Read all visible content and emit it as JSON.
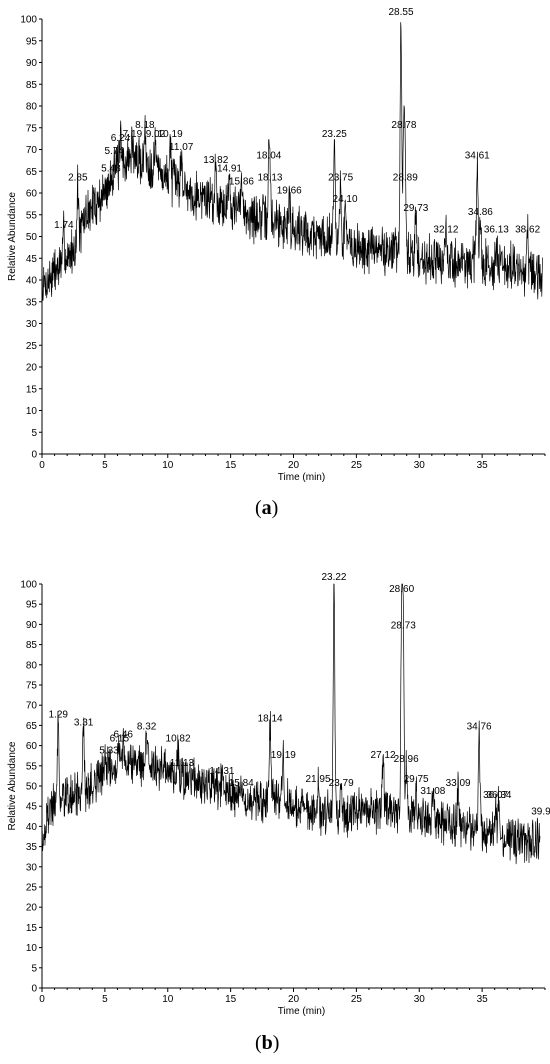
{
  "chart_data": [
    {
      "type": "line",
      "caption_open": "(",
      "caption_letter": "a",
      "caption_close": ")",
      "xlabel": "Time (min)",
      "ylabel": "Relative Abundance",
      "xlim": [
        0,
        40
      ],
      "ylim": [
        0,
        100
      ],
      "xticks": [
        0,
        5,
        10,
        15,
        20,
        25,
        30,
        35
      ],
      "yticks": [
        0,
        5,
        10,
        15,
        20,
        25,
        30,
        35,
        40,
        45,
        50,
        55,
        60,
        65,
        70,
        75,
        80,
        85,
        90,
        95,
        100
      ],
      "line_color": "#000000",
      "baseline_points": [
        [
          0,
          38
        ],
        [
          1,
          42
        ],
        [
          2,
          45
        ],
        [
          2.8,
          48
        ],
        [
          3.5,
          55
        ],
        [
          5,
          60
        ],
        [
          6,
          66
        ],
        [
          7,
          68
        ],
        [
          8,
          67
        ],
        [
          9,
          66
        ],
        [
          10,
          63
        ],
        [
          11,
          62
        ],
        [
          12,
          60
        ],
        [
          13,
          59
        ],
        [
          14,
          58
        ],
        [
          15,
          57
        ],
        [
          16,
          56
        ],
        [
          17,
          54
        ],
        [
          18,
          54
        ],
        [
          19,
          53
        ],
        [
          20,
          52
        ],
        [
          21,
          51
        ],
        [
          22,
          50
        ],
        [
          23,
          50
        ],
        [
          24,
          48
        ],
        [
          25,
          47
        ],
        [
          26,
          47
        ],
        [
          27,
          47
        ],
        [
          28,
          47
        ],
        [
          29,
          46
        ],
        [
          30,
          45
        ],
        [
          31,
          45
        ],
        [
          32,
          44
        ],
        [
          33,
          44
        ],
        [
          34,
          44
        ],
        [
          35,
          44
        ],
        [
          36,
          43
        ],
        [
          37,
          43
        ],
        [
          38,
          42
        ],
        [
          39,
          41
        ],
        [
          39.8,
          40
        ]
      ],
      "peaks": [
        {
          "label": "1.74",
          "x": 1.74,
          "y": 51
        },
        {
          "label": "2.85",
          "x": 2.85,
          "y": 62
        },
        {
          "label": "5.48",
          "x": 5.48,
          "y": 64
        },
        {
          "label": "5.74",
          "x": 5.74,
          "y": 68
        },
        {
          "label": "6.24",
          "x": 6.24,
          "y": 71
        },
        {
          "label": "7.19",
          "x": 7.19,
          "y": 72
        },
        {
          "label": "8.18",
          "x": 8.18,
          "y": 74
        },
        {
          "label": "9.02",
          "x": 9.02,
          "y": 72
        },
        {
          "label": "10.19",
          "x": 10.19,
          "y": 72
        },
        {
          "label": "11.07",
          "x": 11.07,
          "y": 69
        },
        {
          "label": "13.82",
          "x": 13.82,
          "y": 66
        },
        {
          "label": "14.91",
          "x": 14.91,
          "y": 64
        },
        {
          "label": "15.86",
          "x": 15.86,
          "y": 61
        },
        {
          "label": "18.04",
          "x": 18.04,
          "y": 67
        },
        {
          "label": "18.13",
          "x": 18.13,
          "y": 62
        },
        {
          "label": "19.66",
          "x": 19.66,
          "y": 59
        },
        {
          "label": "23.25",
          "x": 23.25,
          "y": 72
        },
        {
          "label": "23.75",
          "x": 23.75,
          "y": 62
        },
        {
          "label": "24.10",
          "x": 24.1,
          "y": 57
        },
        {
          "label": "28.55",
          "x": 28.55,
          "y": 100
        },
        {
          "label": "28.78",
          "x": 28.78,
          "y": 74
        },
        {
          "label": "28.89",
          "x": 28.89,
          "y": 62
        },
        {
          "label": "29.73",
          "x": 29.73,
          "y": 55
        },
        {
          "label": "32.12",
          "x": 32.12,
          "y": 50
        },
        {
          "label": "34.61",
          "x": 34.61,
          "y": 67
        },
        {
          "label": "34.86",
          "x": 34.86,
          "y": 54
        },
        {
          "label": "36.13",
          "x": 36.13,
          "y": 50
        },
        {
          "label": "38.62",
          "x": 38.62,
          "y": 50
        }
      ]
    },
    {
      "type": "line",
      "caption_open": "(",
      "caption_letter": "b",
      "caption_close": ")",
      "xlabel": "Time (min)",
      "ylabel": "Relative Abundance",
      "xlim": [
        0,
        40
      ],
      "ylim": [
        0,
        100
      ],
      "xticks": [
        0,
        5,
        10,
        15,
        20,
        25,
        30,
        35
      ],
      "yticks": [
        0,
        5,
        10,
        15,
        20,
        25,
        30,
        35,
        40,
        45,
        50,
        55,
        60,
        65,
        70,
        75,
        80,
        85,
        90,
        95,
        100
      ],
      "line_color": "#000000",
      "baseline_points": [
        [
          0,
          36
        ],
        [
          0.5,
          43
        ],
        [
          1,
          46
        ],
        [
          2,
          47
        ],
        [
          3,
          48
        ],
        [
          4,
          50
        ],
        [
          5,
          54
        ],
        [
          6,
          56
        ],
        [
          7,
          56
        ],
        [
          8,
          56
        ],
        [
          9,
          55
        ],
        [
          10,
          53
        ],
        [
          11,
          52
        ],
        [
          12,
          51
        ],
        [
          13,
          50
        ],
        [
          14,
          49
        ],
        [
          15,
          48
        ],
        [
          16,
          47
        ],
        [
          17,
          46
        ],
        [
          18,
          46
        ],
        [
          19,
          46
        ],
        [
          20,
          45
        ],
        [
          21,
          45
        ],
        [
          22,
          44
        ],
        [
          23,
          44
        ],
        [
          24,
          43
        ],
        [
          25,
          44
        ],
        [
          26,
          44
        ],
        [
          27,
          44
        ],
        [
          28,
          43
        ],
        [
          29,
          42
        ],
        [
          30,
          42
        ],
        [
          31,
          41
        ],
        [
          32,
          41
        ],
        [
          33,
          40
        ],
        [
          34,
          40
        ],
        [
          35,
          39
        ],
        [
          36,
          38
        ],
        [
          37,
          37
        ],
        [
          38,
          37
        ],
        [
          39,
          36
        ],
        [
          39.6,
          36
        ]
      ],
      "peaks": [
        {
          "label": "1.29",
          "x": 1.29,
          "y": 66
        },
        {
          "label": "3.31",
          "x": 3.31,
          "y": 64
        },
        {
          "label": "5.33",
          "x": 5.33,
          "y": 57
        },
        {
          "label": "6.15",
          "x": 6.15,
          "y": 60
        },
        {
          "label": "6.46",
          "x": 6.46,
          "y": 61
        },
        {
          "label": "8.32",
          "x": 8.32,
          "y": 63
        },
        {
          "label": "10.82",
          "x": 10.82,
          "y": 60
        },
        {
          "label": "11.13",
          "x": 11.13,
          "y": 54
        },
        {
          "label": "14.31",
          "x": 14.31,
          "y": 52
        },
        {
          "label": "15.84",
          "x": 15.84,
          "y": 49
        },
        {
          "label": "18.14",
          "x": 18.14,
          "y": 65
        },
        {
          "label": "19.19",
          "x": 19.19,
          "y": 56
        },
        {
          "label": "21.95",
          "x": 21.95,
          "y": 50
        },
        {
          "label": "23.22",
          "x": 23.22,
          "y": 100
        },
        {
          "label": "23.79",
          "x": 23.79,
          "y": 49
        },
        {
          "label": "27.12",
          "x": 27.12,
          "y": 56
        },
        {
          "label": "28.60",
          "x": 28.6,
          "y": 97
        },
        {
          "label": "28.73",
          "x": 28.73,
          "y": 88
        },
        {
          "label": "28.96",
          "x": 28.96,
          "y": 55
        },
        {
          "label": "29.75",
          "x": 29.75,
          "y": 50
        },
        {
          "label": "31.08",
          "x": 31.08,
          "y": 47
        },
        {
          "label": "33.09",
          "x": 33.09,
          "y": 49
        },
        {
          "label": "34.76",
          "x": 34.76,
          "y": 63
        },
        {
          "label": "36.07",
          "x": 36.07,
          "y": 46
        },
        {
          "label": "36.34",
          "x": 36.34,
          "y": 46
        },
        {
          "label": "39.90",
          "x": 39.9,
          "y": 42
        }
      ]
    }
  ]
}
